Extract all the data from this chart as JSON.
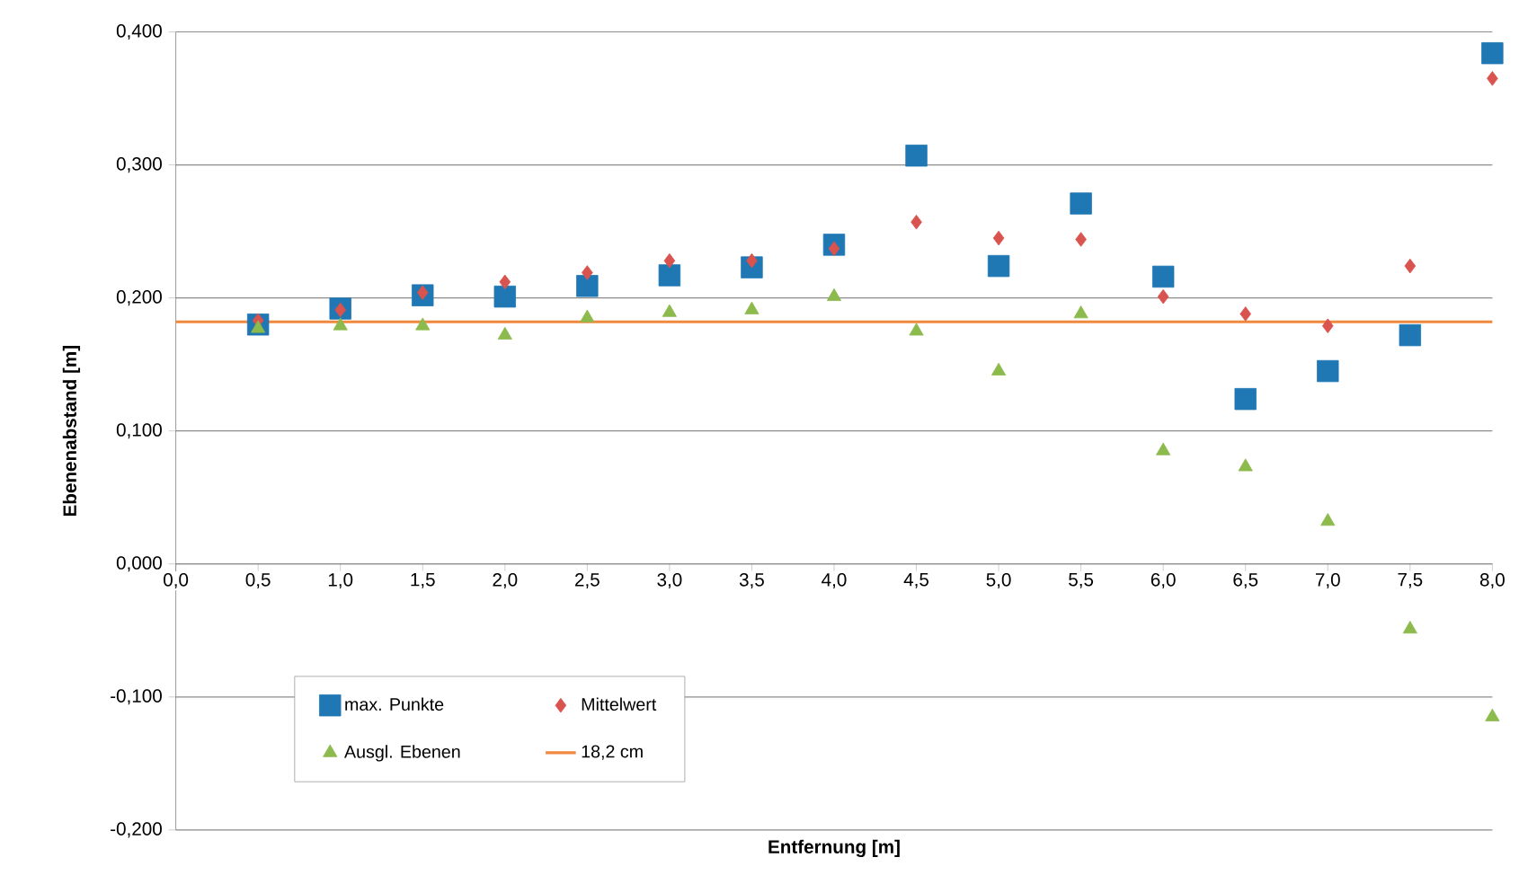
{
  "chart_data": {
    "type": "scatter",
    "xlabel": "Entfernung [m]",
    "ylabel": "Ebenenabstand [m]",
    "x": [
      0.5,
      1.0,
      1.5,
      2.0,
      2.5,
      3.0,
      3.5,
      4.0,
      4.5,
      5.0,
      5.5,
      6.0,
      6.5,
      7.0,
      7.5,
      8.0
    ],
    "series": [
      {
        "name": "max. Punkte",
        "color": "#1f77b4",
        "marker": "square",
        "values": [
          0.18,
          0.192,
          0.202,
          0.201,
          0.209,
          0.217,
          0.223,
          0.24,
          0.307,
          0.224,
          0.271,
          0.216,
          0.124,
          0.145,
          0.172,
          0.384
        ]
      },
      {
        "name": "Mittelwert",
        "color": "#d9534f",
        "marker": "diamond",
        "values": [
          0.183,
          0.191,
          0.204,
          0.212,
          0.219,
          0.228,
          0.228,
          0.237,
          0.257,
          0.245,
          0.244,
          0.201,
          0.188,
          0.179,
          0.224,
          0.365
        ]
      },
      {
        "name": "Ausgl. Ebenen",
        "color": "#8cba4c",
        "marker": "triangle",
        "values": [
          0.177,
          0.179,
          0.179,
          0.172,
          0.185,
          0.189,
          0.191,
          0.201,
          0.175,
          0.145,
          0.188,
          0.085,
          0.073,
          0.032,
          -0.049,
          -0.115
        ]
      },
      {
        "name": "18,2 cm",
        "type": "line",
        "color": "#f0883e",
        "x": [
          0.0,
          8.0
        ],
        "values": [
          0.182,
          0.182
        ]
      }
    ],
    "xlim": [
      0,
      8
    ],
    "ylim": [
      -0.2,
      0.4
    ],
    "xticks": [
      {
        "value": 0,
        "label": "0,0"
      },
      {
        "value": 0.5,
        "label": "0,5"
      },
      {
        "value": 1,
        "label": "1,0"
      },
      {
        "value": 1.5,
        "label": "1,5"
      },
      {
        "value": 2,
        "label": "2,0"
      },
      {
        "value": 2.5,
        "label": "2,5"
      },
      {
        "value": 3,
        "label": "3,0"
      },
      {
        "value": 3.5,
        "label": "3,5"
      },
      {
        "value": 4,
        "label": "4,0"
      },
      {
        "value": 4.5,
        "label": "4,5"
      },
      {
        "value": 5,
        "label": "5,0"
      },
      {
        "value": 5.5,
        "label": "5,5"
      },
      {
        "value": 6,
        "label": "6,0"
      },
      {
        "value": 6.5,
        "label": "6,5"
      },
      {
        "value": 7,
        "label": "7,0"
      },
      {
        "value": 7.5,
        "label": "7,5"
      },
      {
        "value": 8,
        "label": "8,0"
      }
    ],
    "yticks": [
      {
        "value": -0.2,
        "label": "-0,200"
      },
      {
        "value": -0.1,
        "label": "-0,100"
      },
      {
        "value": 0,
        "label": "0,000"
      },
      {
        "value": 0.1,
        "label": "0,100"
      },
      {
        "value": 0.2,
        "label": "0,200"
      },
      {
        "value": 0.3,
        "label": "0,300"
      },
      {
        "value": 0.4,
        "label": "0,400"
      }
    ],
    "grid": "y",
    "legend": "bottom left"
  }
}
